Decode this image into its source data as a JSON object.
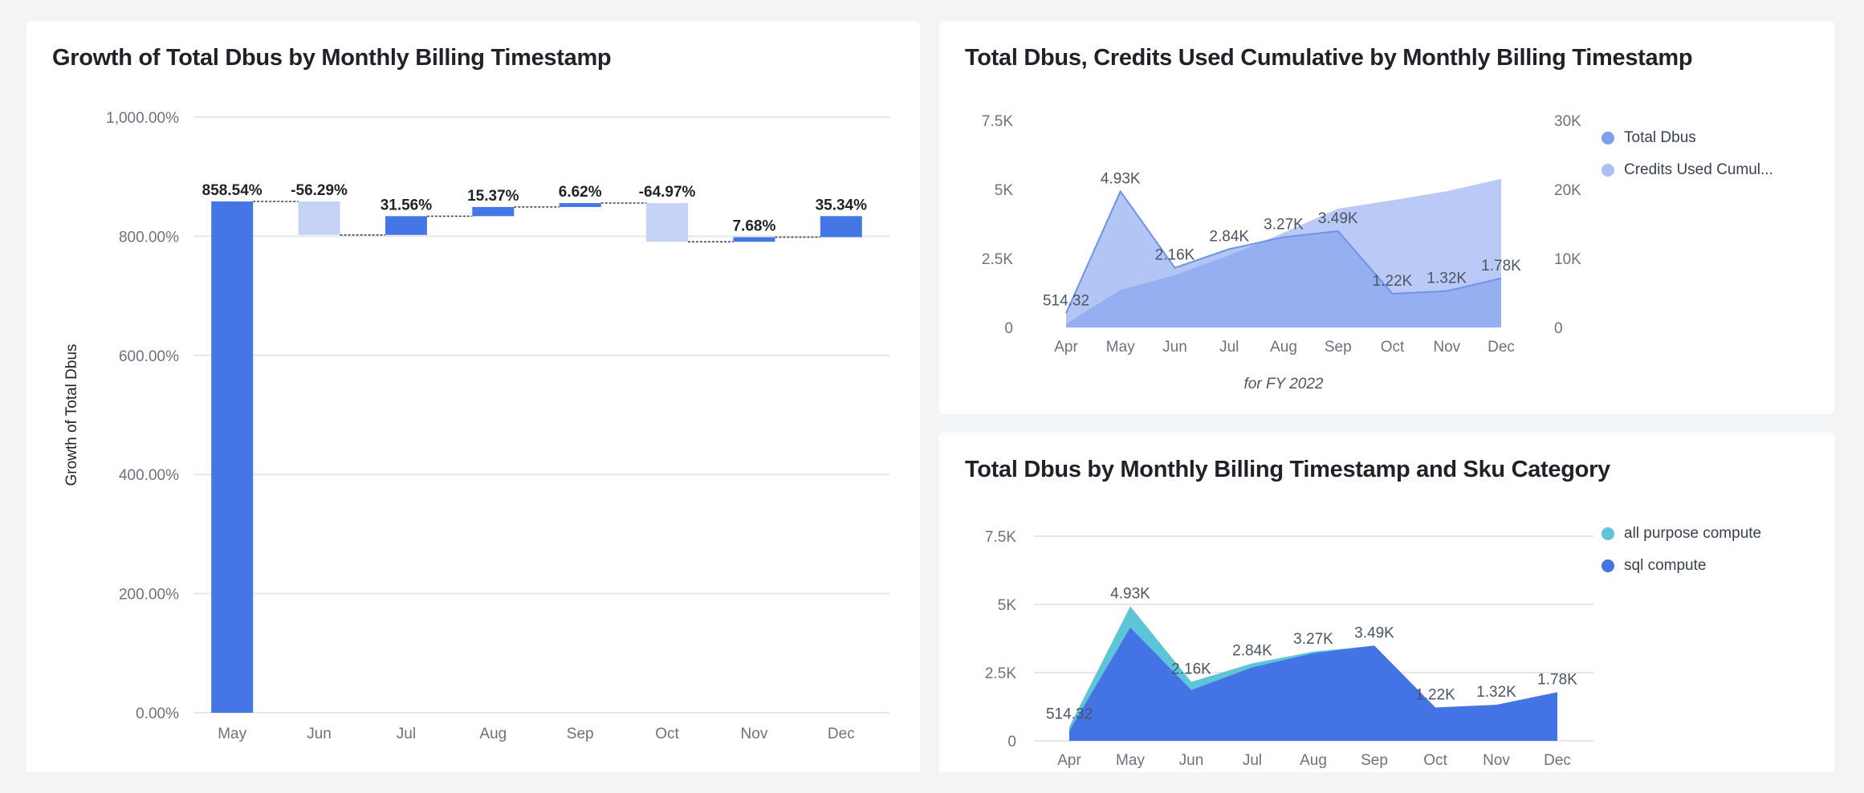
{
  "colors": {
    "blue": "#4476e6",
    "light_blue": "#c5d3f6",
    "area_blue": "#7f9fec",
    "area_light": "#aebff3",
    "teal": "#5ec4d8",
    "dark_blue": "#4373e5"
  },
  "chart_data": [
    {
      "id": "growth",
      "type": "bar",
      "subtype": "waterfall",
      "title": "Growth of Total Dbus by Monthly Billing Timestamp",
      "ylabel": "Growth of Total Dbus",
      "ylim": [
        0,
        1000
      ],
      "yticks": [
        "0.00%",
        "200.00%",
        "400.00%",
        "600.00%",
        "800.00%",
        "1,000.00%"
      ],
      "yticks_values": [
        0,
        200,
        400,
        600,
        800,
        1000
      ],
      "categories": [
        "May",
        "Jun",
        "Jul",
        "Aug",
        "Sep",
        "Oct",
        "Nov",
        "Dec"
      ],
      "values": [
        858.54,
        -56.29,
        31.56,
        15.37,
        6.62,
        -64.97,
        7.68,
        35.34
      ],
      "data_labels": [
        "858.54%",
        "-56.29%",
        "31.56%",
        "15.37%",
        "6.62%",
        "-64.97%",
        "7.68%",
        "35.34%"
      ],
      "grid": true
    },
    {
      "id": "cumulative",
      "type": "area",
      "title": "Total Dbus, Credits Used Cumulative by Monthly Billing Timestamp",
      "subtitle": "for FY 2022",
      "categories": [
        "Apr",
        "May",
        "Jun",
        "Jul",
        "Aug",
        "Sep",
        "Oct",
        "Nov",
        "Dec"
      ],
      "y_left": {
        "ylim": [
          0,
          7500
        ],
        "ticks": [
          "0",
          "2.5K",
          "5K",
          "7.5K"
        ],
        "ticks_values": [
          0,
          2500,
          5000,
          7500
        ]
      },
      "y_right": {
        "ylim": [
          0,
          30000
        ],
        "ticks": [
          "0",
          "10K",
          "20K",
          "30K"
        ],
        "ticks_values": [
          0,
          10000,
          20000,
          30000
        ]
      },
      "series": [
        {
          "name": "Total Dbus",
          "axis": "left",
          "values": [
            514.32,
            4930,
            2160,
            2840,
            3270,
            3490,
            1220,
            1320,
            1780
          ],
          "labels": [
            "514.32",
            "4.93K",
            "2.16K",
            "2.84K",
            "3.27K",
            "3.49K",
            "1.22K",
            "1.32K",
            "1.78K"
          ]
        },
        {
          "name": "Credits Used Cumul...",
          "axis": "right",
          "values": [
            514,
            5444,
            7604,
            10444,
            13714,
            17204,
            18424,
            19744,
            21524
          ]
        }
      ],
      "legend": "right",
      "grid": false
    },
    {
      "id": "sku",
      "type": "area",
      "stacked": true,
      "title": "Total Dbus by Monthly Billing Timestamp and Sku Category",
      "categories": [
        "Apr",
        "May",
        "Jun",
        "Jul",
        "Aug",
        "Sep",
        "Oct",
        "Nov",
        "Dec"
      ],
      "ylim": [
        0,
        7500
      ],
      "yticks": [
        "0",
        "2.5K",
        "5K",
        "7.5K"
      ],
      "yticks_values": [
        0,
        2500,
        5000,
        7500
      ],
      "series": [
        {
          "name": "all purpose compute",
          "values": [
            150,
            780,
            300,
            150,
            60,
            0,
            0,
            0,
            0
          ]
        },
        {
          "name": "sql compute",
          "values": [
            364.32,
            4150,
            1860,
            2690,
            3210,
            3490,
            1220,
            1320,
            1780
          ]
        }
      ],
      "total_labels": [
        "514.32",
        "4.93K",
        "2.16K",
        "2.84K",
        "3.27K",
        "3.49K",
        "1.22K",
        "1.32K",
        "1.78K"
      ],
      "legend": "right",
      "grid": true
    }
  ]
}
